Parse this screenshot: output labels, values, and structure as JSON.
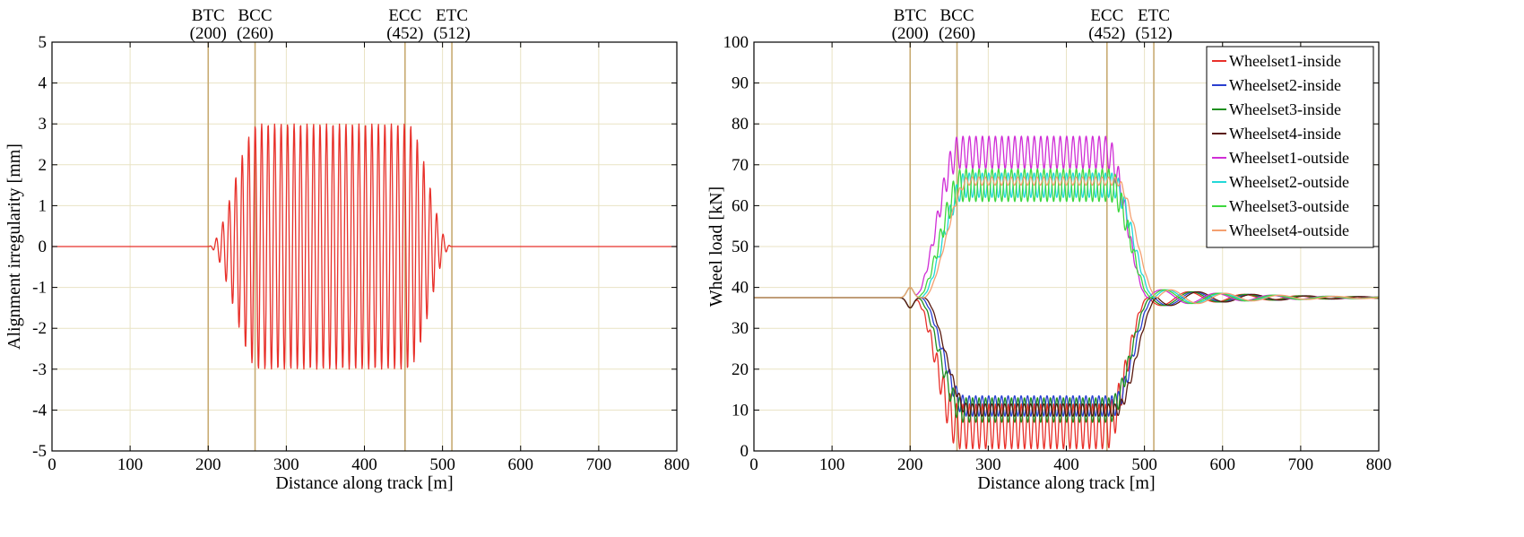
{
  "chart_data": [
    {
      "type": "line",
      "xlabel": "Distance along track [m]",
      "ylabel": "Alignment irregularity [mm]",
      "xlim": [
        0,
        800
      ],
      "ylim": [
        -5,
        5
      ],
      "xticks": [
        0,
        100,
        200,
        300,
        400,
        500,
        600,
        700,
        800
      ],
      "yticks": [
        -5,
        -4,
        -3,
        -2,
        -1,
        0,
        1,
        2,
        3,
        4,
        5
      ],
      "grid": true,
      "markers": [
        {
          "name": "BTC",
          "value": "(200)",
          "x": 200
        },
        {
          "name": "BCC",
          "value": "(260)",
          "x": 260
        },
        {
          "name": "ECC",
          "value": "(452)",
          "x": 452
        },
        {
          "name": "ETC",
          "value": "(512)",
          "x": 512
        }
      ],
      "series": [
        {
          "color": "#e8302a",
          "shape": "sinusoid",
          "amplitude": 3,
          "wavelength": 8.3,
          "ramp_start": 200,
          "ramp_full": 265,
          "ramp_end": 455,
          "ramp_stop": 512,
          "baseline": 0
        }
      ]
    },
    {
      "type": "line",
      "xlabel": "Distance along track [m]",
      "ylabel": "Wheel load [kN]",
      "xlim": [
        0,
        800
      ],
      "ylim": [
        0,
        100
      ],
      "xticks": [
        0,
        100,
        200,
        300,
        400,
        500,
        600,
        700,
        800
      ],
      "yticks": [
        0,
        10,
        20,
        30,
        40,
        50,
        60,
        70,
        80,
        90,
        100
      ],
      "grid": true,
      "legend_position": "top-right",
      "markers": [
        {
          "name": "BTC",
          "value": "(200)",
          "x": 200
        },
        {
          "name": "BCC",
          "value": "(260)",
          "x": 260
        },
        {
          "name": "ECC",
          "value": "(452)",
          "x": 452
        },
        {
          "name": "ETC",
          "value": "(512)",
          "x": 512
        }
      ],
      "series": [
        {
          "name": "Wheelset1-inside",
          "color": "#e8302a",
          "base": 37.5,
          "mid": 6,
          "osc": 5.5,
          "offset": 0,
          "side": "inside"
        },
        {
          "name": "Wheelset2-inside",
          "color": "#2a3fd0",
          "base": 37.5,
          "mid": 11,
          "osc": 2.5,
          "offset": 8,
          "side": "inside"
        },
        {
          "name": "Wheelset3-inside",
          "color": "#1f8f1f",
          "base": 37.5,
          "mid": 10,
          "osc": 3,
          "offset": 4,
          "side": "inside"
        },
        {
          "name": "Wheelset4-inside",
          "color": "#5a1a10",
          "base": 37.5,
          "mid": 10,
          "osc": 1.5,
          "offset": 12,
          "side": "inside"
        },
        {
          "name": "Wheelset1-outside",
          "color": "#d02ed6",
          "base": 37.5,
          "mid": 73,
          "osc": 4,
          "offset": 0,
          "side": "outside"
        },
        {
          "name": "Wheelset2-outside",
          "color": "#22d8d8",
          "base": 37.5,
          "mid": 65,
          "osc": 3,
          "offset": 8,
          "side": "outside"
        },
        {
          "name": "Wheelset3-outside",
          "color": "#3ed83e",
          "base": 37.5,
          "mid": 65,
          "osc": 4,
          "offset": 4,
          "side": "outside"
        },
        {
          "name": "Wheelset4-outside",
          "color": "#f4a070",
          "base": 37.5,
          "mid": 66,
          "osc": 1,
          "offset": 12,
          "side": "outside"
        }
      ]
    }
  ]
}
